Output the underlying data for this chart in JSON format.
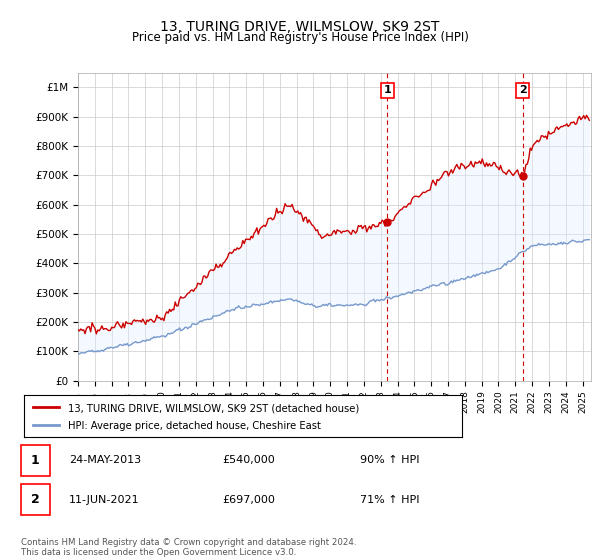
{
  "title": "13, TURING DRIVE, WILMSLOW, SK9 2ST",
  "subtitle": "Price paid vs. HM Land Registry's House Price Index (HPI)",
  "ylabel_ticks": [
    "£0",
    "£100K",
    "£200K",
    "£300K",
    "£400K",
    "£500K",
    "£600K",
    "£700K",
    "£800K",
    "£900K",
    "£1M"
  ],
  "ytick_vals": [
    0,
    100000,
    200000,
    300000,
    400000,
    500000,
    600000,
    700000,
    800000,
    900000,
    1000000
  ],
  "ylim": [
    0,
    1050000
  ],
  "xlim_start": 1995.0,
  "xlim_end": 2025.5,
  "sale1_date": 2013.39,
  "sale1_price": 540000,
  "sale1_label": "1",
  "sale2_date": 2021.44,
  "sale2_price": 697000,
  "sale2_label": "2",
  "annotation1_date": "24-MAY-2013",
  "annotation1_price": "£540,000",
  "annotation1_hpi": "90% ↑ HPI",
  "annotation2_date": "11-JUN-2021",
  "annotation2_price": "£697,000",
  "annotation2_hpi": "71% ↑ HPI",
  "legend_red": "13, TURING DRIVE, WILMSLOW, SK9 2ST (detached house)",
  "legend_blue": "HPI: Average price, detached house, Cheshire East",
  "footer": "Contains HM Land Registry data © Crown copyright and database right 2024.\nThis data is licensed under the Open Government Licence v3.0.",
  "red_color": "#cc0000",
  "blue_color": "#7799cc",
  "shade_color": "#ddeeff",
  "dashed_color": "#cc0000",
  "background_color": "#ffffff",
  "grid_color": "#cccccc"
}
